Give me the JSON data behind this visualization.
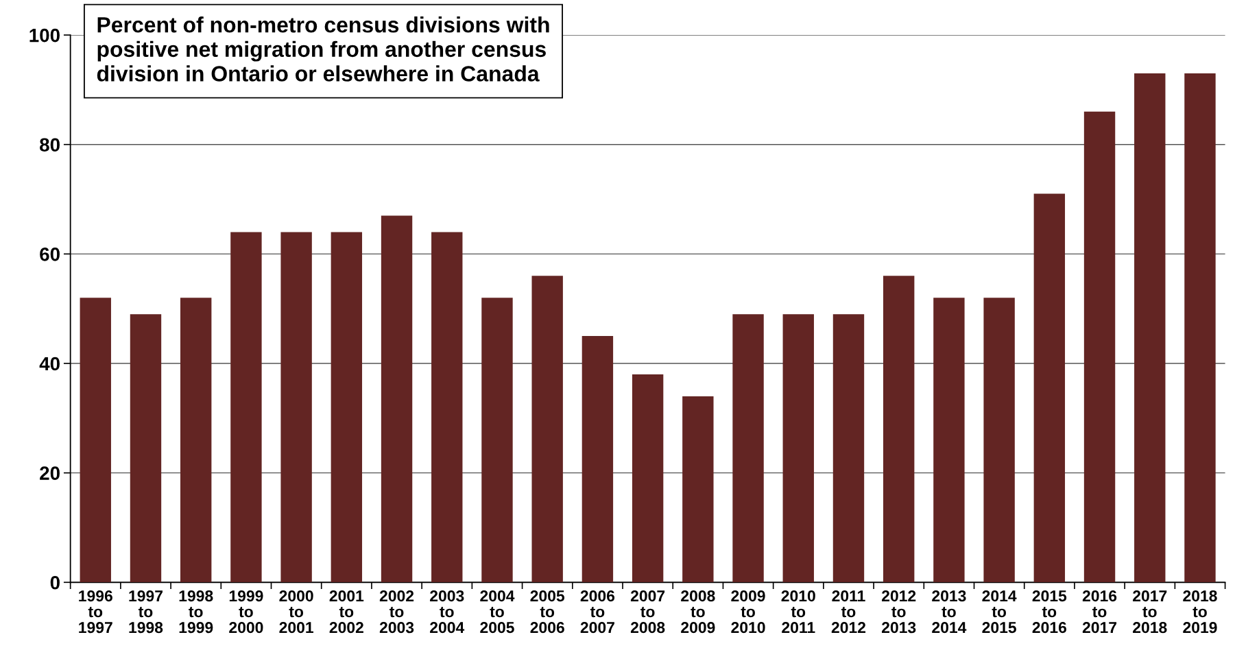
{
  "chart_data": {
    "type": "bar",
    "title": "Percent of non-metro census divisions with\npositive net migration from another census\ndivision in Ontario or elsewhere in Canada",
    "categories": [
      "1996 to 1997",
      "1997 to 1998",
      "1998 to 1999",
      "1999 to 2000",
      "2000 to 2001",
      "2001 to 2002",
      "2002 to 2003",
      "2003 to 2004",
      "2004 to 2005",
      "2005 to 2006",
      "2006 to 2007",
      "2007 to 2008",
      "2008 to 2009",
      "2009 to 2010",
      "2010 to 2011",
      "2011 to 2012",
      "2012 to 2013",
      "2013 to 2014",
      "2014 to 2015",
      "2015 to 2016",
      "2016 to 2017",
      "2017 to 2018",
      "2018 to 2019"
    ],
    "values": [
      52,
      49,
      52,
      64,
      64,
      64,
      67,
      64,
      52,
      56,
      45,
      38,
      34,
      49,
      49,
      49,
      56,
      52,
      52,
      71,
      86,
      93,
      93
    ],
    "color": "#632523",
    "ylim": [
      0,
      100
    ],
    "yticks": [
      0,
      20,
      40,
      60,
      80,
      100
    ],
    "grid": "y"
  }
}
